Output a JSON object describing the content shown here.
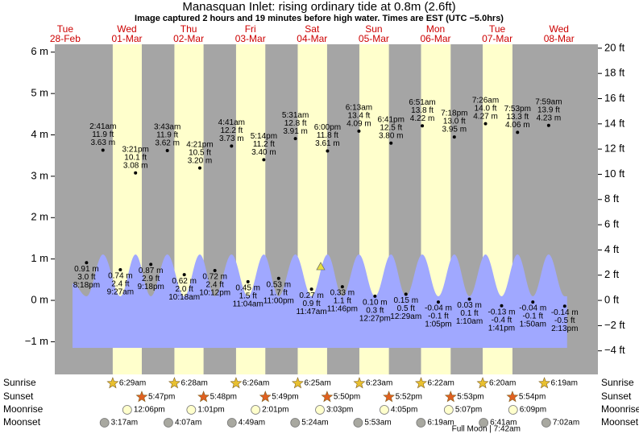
{
  "chart_data": {
    "type": "tide",
    "title": "Manasquan Inlet: rising  ordinary tide at 0.8m (2.6ft)",
    "subtitle": "Image captured 2 hours and 19 minutes before high water. Times are EST (UTC −5.0hrs)",
    "ylim": [
      -1.79,
      6.19
    ],
    "yticks": [
      {
        "value": 6,
        "label": "6 m"
      },
      {
        "value": 5,
        "label": "5 m"
      },
      {
        "value": 4,
        "label": "4 m"
      },
      {
        "value": 3,
        "label": "3 m"
      },
      {
        "value": 2,
        "label": "2 m"
      },
      {
        "value": 1,
        "label": "1 m"
      },
      {
        "value": 0,
        "label": "0 m"
      },
      {
        "value": -1,
        "label": "−1 m"
      }
    ],
    "y2lim": [
      -5.87,
      20.31
    ],
    "y2ticks": [
      {
        "value": 20,
        "label": "20 ft"
      },
      {
        "value": 18,
        "label": "18 ft"
      },
      {
        "value": 16,
        "label": "16 ft"
      },
      {
        "value": 14,
        "label": "14 ft"
      },
      {
        "value": 12,
        "label": "12 ft"
      },
      {
        "value": 10,
        "label": "10 ft"
      },
      {
        "value": 8,
        "label": "8 ft"
      },
      {
        "value": 6,
        "label": "6 ft"
      },
      {
        "value": 4,
        "label": "4 ft"
      },
      {
        "value": 2,
        "label": "2 ft"
      },
      {
        "value": 0,
        "label": "0 ft"
      },
      {
        "value": -2,
        "label": "−2 ft"
      },
      {
        "value": -4,
        "label": "−4 ft"
      }
    ],
    "row_labels": [
      "Sunrise",
      "Sunset",
      "Moonrise",
      "Moonset"
    ],
    "days": [
      {
        "dow": "Tue",
        "date": "28-Feb",
        "tides": [
          {
            "time": "8:18pm",
            "height_m": 0.91,
            "label_m": "0.91 m",
            "label_ft": "3.0 ft"
          }
        ]
      },
      {
        "dow": "Wed",
        "date": "01-Mar",
        "sunrise": "6:29am",
        "sunset": "5:47pm",
        "moonrise": "12:06pm",
        "moonset": "3:17am",
        "tides": [
          {
            "time": "2:41am",
            "height_m": 3.63,
            "label_m": "3.63 m",
            "label_ft": "11.9 ft"
          },
          {
            "time": "9:27am",
            "height_m": 0.74,
            "label_m": "0.74 m",
            "label_ft": "2.4 ft"
          },
          {
            "time": "3:21pm",
            "height_m": 3.08,
            "label_m": "3.08 m",
            "label_ft": "10.1 ft"
          },
          {
            "time": "9:18pm",
            "height_m": 0.87,
            "label_m": "0.87 m",
            "label_ft": "2.9 ft"
          }
        ]
      },
      {
        "dow": "Thu",
        "date": "02-Mar",
        "sunrise": "6:28am",
        "sunset": "5:48pm",
        "moonrise": "1:01pm",
        "moonset": "4:07am",
        "tides": [
          {
            "time": "3:43am",
            "height_m": 3.62,
            "label_m": "3.62 m",
            "label_ft": "11.9 ft"
          },
          {
            "time": "10:18am",
            "height_m": 0.62,
            "label_m": "0.62 m",
            "label_ft": "2.0 ft"
          },
          {
            "time": "4:21pm",
            "height_m": 3.2,
            "label_m": "3.20 m",
            "label_ft": "10.5 ft"
          },
          {
            "time": "10:12pm",
            "height_m": 0.72,
            "label_m": "0.72 m",
            "label_ft": "2.4 ft"
          }
        ]
      },
      {
        "dow": "Fri",
        "date": "03-Mar",
        "sunrise": "6:26am",
        "sunset": "5:49pm",
        "moonrise": "2:01pm",
        "moonset": "4:49am",
        "tides": [
          {
            "time": "4:41am",
            "height_m": 3.73,
            "label_m": "3.73 m",
            "label_ft": "12.2 ft"
          },
          {
            "time": "11:04am",
            "height_m": 0.45,
            "label_m": "0.45 m",
            "label_ft": "1.5 ft"
          },
          {
            "time": "5:14pm",
            "height_m": 3.4,
            "label_m": "3.40 m",
            "label_ft": "11.2 ft"
          },
          {
            "time": "11:00pm",
            "height_m": 0.53,
            "label_m": "0.53 m",
            "label_ft": "1.7 ft"
          }
        ]
      },
      {
        "dow": "Sat",
        "date": "04-Mar",
        "sunrise": "6:25am",
        "sunset": "5:50pm",
        "moonrise": "3:03pm",
        "moonset": "5:24am",
        "tides": [
          {
            "time": "5:31am",
            "height_m": 3.91,
            "label_m": "3.91 m",
            "label_ft": "12.8 ft"
          },
          {
            "time": "11:47am",
            "height_m": 0.27,
            "label_m": "0.27 m",
            "label_ft": "0.9 ft"
          },
          {
            "time": "6:00pm",
            "height_m": 3.61,
            "label_m": "3.61 m",
            "label_ft": "11.8 ft"
          },
          {
            "time": "11:46pm",
            "height_m": 0.33,
            "label_m": "0.33 m",
            "label_ft": "1.1 ft"
          }
        ]
      },
      {
        "dow": "Sun",
        "date": "05-Mar",
        "sunrise": "6:23am",
        "sunset": "5:52pm",
        "moonrise": "4:05pm",
        "moonset": "5:53am",
        "tides": [
          {
            "time": "6:13am",
            "height_m": 4.09,
            "label_m": "4.09 m",
            "label_ft": "13.4 ft"
          },
          {
            "time": "12:27pm",
            "height_m": 0.1,
            "label_m": "0.10 m",
            "label_ft": "0.3 ft"
          },
          {
            "time": "6:41pm",
            "height_m": 3.8,
            "label_m": "3.80 m",
            "label_ft": "12.5 ft"
          }
        ]
      },
      {
        "dow": "Mon",
        "date": "06-Mar",
        "sunrise": "6:22am",
        "sunset": "5:53pm",
        "moonrise": "5:07pm",
        "moonset": "6:19am",
        "tides": [
          {
            "time": "12:29am",
            "height_m": 0.15,
            "label_m": "0.15 m",
            "label_ft": "0.5 ft"
          },
          {
            "time": "6:51am",
            "height_m": 4.22,
            "label_m": "4.22 m",
            "label_ft": "13.8 ft"
          },
          {
            "time": "1:05pm",
            "height_m": -0.04,
            "label_m": "-0.04 m",
            "label_ft": "-0.1 ft"
          },
          {
            "time": "7:18pm",
            "height_m": 3.95,
            "label_m": "3.95 m",
            "label_ft": "13.0 ft"
          }
        ]
      },
      {
        "dow": "Tue",
        "date": "07-Mar",
        "sunrise": "6:20am",
        "sunset": "5:54pm",
        "moonrise": "6:09pm",
        "moonset": "6:41am",
        "event": "Full Moon | 7:42am",
        "tides": [
          {
            "time": "1:10am",
            "height_m": 0.03,
            "label_m": "0.03 m",
            "label_ft": "0.1 ft"
          },
          {
            "time": "7:26am",
            "height_m": 4.27,
            "label_m": "4.27 m",
            "label_ft": "14.0 ft"
          },
          {
            "time": "1:41pm",
            "height_m": -0.13,
            "label_m": "-0.13 m",
            "label_ft": "-0.4 ft"
          },
          {
            "time": "7:53pm",
            "height_m": 4.06,
            "label_m": "4.06 m",
            "label_ft": "13.3 ft"
          }
        ]
      },
      {
        "dow": "Wed",
        "date": "08-Mar",
        "sunrise": "6:19am",
        "moonset": "7:02am",
        "tides": [
          {
            "time": "1:50am",
            "height_m": -0.04,
            "label_m": "-0.04 m",
            "label_ft": "-0.1 ft"
          },
          {
            "time": "7:59am",
            "height_m": 4.23,
            "label_m": "4.23 m",
            "label_ft": "13.9 ft"
          },
          {
            "time": "2:13pm",
            "height_m": -0.14,
            "label_m": "-0.14 m",
            "label_ft": "-0.5 ft"
          }
        ]
      }
    ]
  }
}
